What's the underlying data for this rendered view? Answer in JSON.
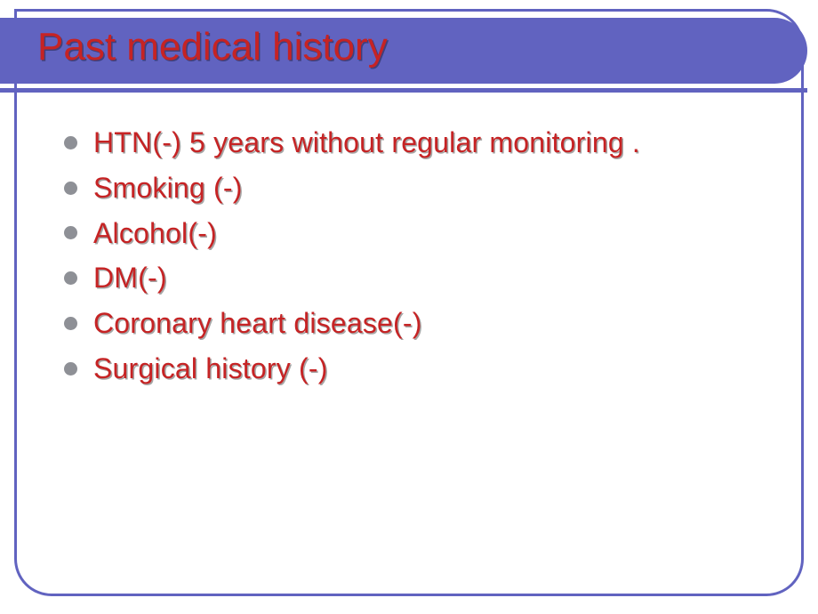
{
  "colors": {
    "accent": "#6163c0",
    "title_text": "#c62324",
    "body_text": "#c62324",
    "bullet_dot": "#8e9096",
    "frame_border": "#6163c0",
    "background": "#ffffff",
    "title_underline": "#6163c0"
  },
  "typography": {
    "title_fontsize": 44,
    "body_fontsize": 32,
    "font_family": "Lucida Sans"
  },
  "title": "Past medical history",
  "bullets": [
    "HTN(-) 5 years without regular monitoring .",
    "Smoking (-)",
    "Alcohol(-)",
    "DM(-)",
    "Coronary heart disease(-)",
    "Surgical history (-)"
  ]
}
